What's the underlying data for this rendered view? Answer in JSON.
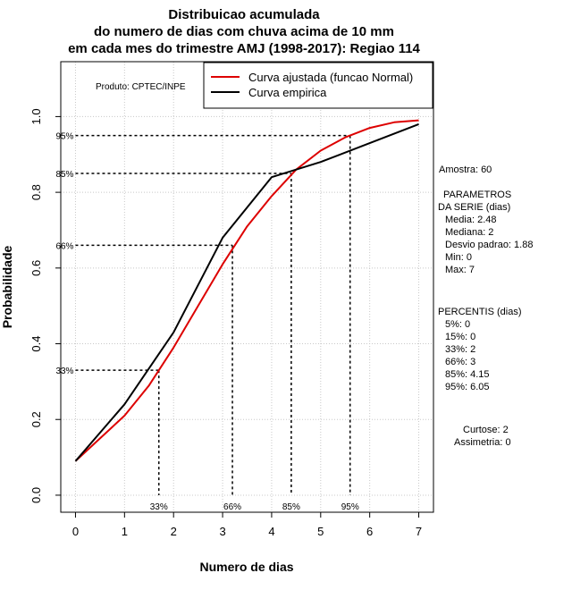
{
  "chart_data": {
    "type": "line",
    "title_lines": [
      "Distribuicao acumulada",
      "do numero de dias com chuva acima de 10 mm",
      "em cada mes do trimestre AMJ (1998-2017): Regiao 114"
    ],
    "xlabel": "Numero de dias",
    "ylabel": "Probabilidade",
    "xlim": [
      -0.3,
      7.3
    ],
    "ylim": [
      -0.045,
      1.145
    ],
    "x_ticks": [
      0,
      1,
      2,
      3,
      4,
      5,
      6,
      7
    ],
    "y_ticks": [
      0.0,
      0.2,
      0.4,
      0.6,
      0.8,
      1.0
    ],
    "y_tick_labels": [
      "0.0",
      "0.2",
      "0.4",
      "0.6",
      "0.8",
      "1.0"
    ],
    "grid": true,
    "producer": "Produto: CPTEC/INPE",
    "legend": {
      "position": "top-right",
      "entries": [
        {
          "label": "Curva ajustada (funcao Normal)",
          "color": "#dd0000"
        },
        {
          "label": "Curva empirica",
          "color": "#000000"
        }
      ]
    },
    "series": [
      {
        "name": "Curva ajustada (funcao Normal)",
        "color": "#dd0000",
        "x": [
          0,
          0.5,
          1,
          1.5,
          2,
          2.5,
          3,
          3.5,
          4,
          4.5,
          5,
          5.5,
          6,
          6.5,
          7
        ],
        "values": [
          0.09,
          0.15,
          0.21,
          0.29,
          0.39,
          0.5,
          0.61,
          0.71,
          0.79,
          0.86,
          0.91,
          0.945,
          0.97,
          0.985,
          0.99
        ]
      },
      {
        "name": "Curva empirica",
        "color": "#000000",
        "x": [
          0,
          1,
          2,
          3,
          4,
          5,
          6,
          7
        ],
        "values": [
          0.09,
          0.24,
          0.43,
          0.68,
          0.84,
          0.88,
          0.93,
          0.98
        ]
      }
    ],
    "percentile_markers": [
      {
        "label": "33%",
        "prob": 0.33,
        "x": 1.7
      },
      {
        "label": "66%",
        "prob": 0.66,
        "x": 3.2
      },
      {
        "label": "85%",
        "prob": 0.85,
        "x": 4.4
      },
      {
        "label": "95%",
        "prob": 0.95,
        "x": 5.6
      }
    ]
  },
  "side_panel": {
    "amostra": "Amostra: 60",
    "parametros_title_1": "PARAMETROS",
    "parametros_title_2": "DA SERIE (dias)",
    "params": [
      "Media: 2.48",
      "Mediana: 2",
      "Desvio padrao: 1.88",
      "Min: 0",
      "Max: 7"
    ],
    "percentis_title": "PERCENTIS (dias)",
    "percentis": [
      "5%: 0",
      "15%: 0",
      "33%: 2",
      "66%: 3",
      "85%: 4.15",
      "95%: 6.05"
    ],
    "curtose": "Curtose: 2",
    "assimetria": "Assimetria: 0"
  }
}
